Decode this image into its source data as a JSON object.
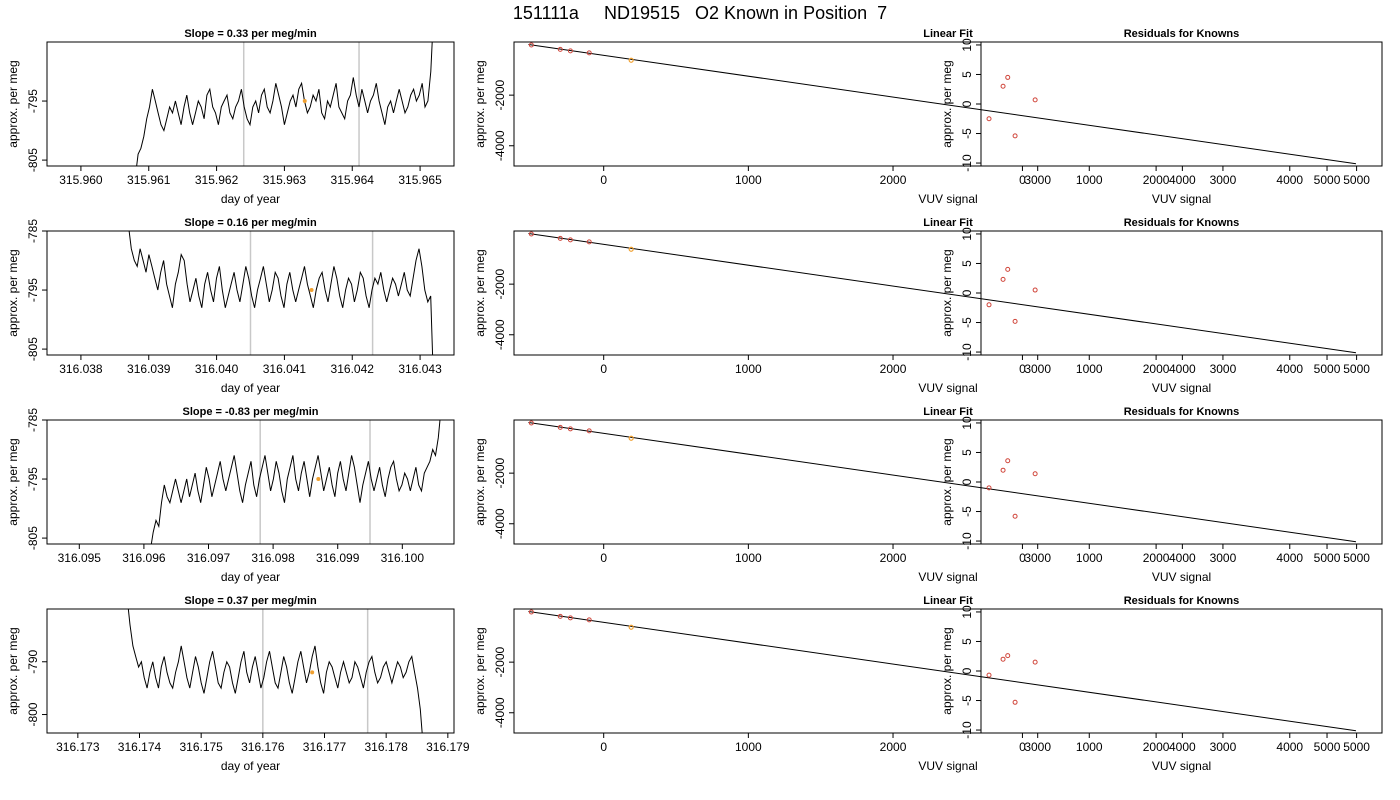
{
  "figure_title": "151111a     ND19515   O2 Known in Position  7",
  "colors": {
    "line": "#000000",
    "vline": "#c8c8c8",
    "point": "#d0453a",
    "highlight": "#f0a030",
    "axis": "#000000"
  },
  "chart_data": [
    {
      "type": "line",
      "row": 1,
      "col": 1,
      "title": "Slope =  0.33  per meg/min",
      "xlabel": "day of year",
      "ylabel": "approx. per meg",
      "xticks": [
        "315.960",
        "315.961",
        "315.962",
        "315.963",
        "315.964",
        "315.965"
      ],
      "xlim": [
        315.9595,
        315.9655
      ],
      "yticks": [
        "-805",
        "-795"
      ],
      "ylim": [
        -806,
        -785
      ],
      "x_start": 315.9608,
      "x_end": 315.9652,
      "trace_y": [
        -808,
        -804,
        -803,
        -801,
        -798,
        -796,
        -793,
        -795,
        -797,
        -799,
        -800,
        -798,
        -796,
        -797,
        -795,
        -797,
        -799,
        -796,
        -794,
        -797,
        -799,
        -797,
        -795,
        -796,
        -798,
        -794,
        -793,
        -796,
        -797,
        -799,
        -796,
        -795,
        -794,
        -797,
        -798,
        -796,
        -795,
        -793,
        -796,
        -798,
        -799,
        -796,
        -795,
        -797,
        -794,
        -793,
        -796,
        -797,
        -795,
        -792,
        -794,
        -796,
        -799,
        -797,
        -795,
        -794,
        -796,
        -793,
        -792,
        -795,
        -797,
        -796,
        -794,
        -795,
        -793,
        -797,
        -798,
        -795,
        -796,
        -794,
        -792,
        -796,
        -797,
        -798,
        -795,
        -794,
        -791,
        -794,
        -796,
        -793,
        -795,
        -797,
        -795,
        -794,
        -792,
        -795,
        -797,
        -799,
        -796,
        -795,
        -797,
        -795,
        -793,
        -795,
        -797,
        -796,
        -794,
        -793,
        -795,
        -794,
        -792,
        -796,
        -795,
        -790,
        -780
      ],
      "vlines": [
        315.9624,
        315.9641
      ],
      "highlight_point": {
        "x": 315.9633,
        "y": -795
      }
    },
    {
      "type": "scatter",
      "row": 1,
      "col": 2,
      "title": "Linear Fit",
      "xlabel": "VUV signal",
      "ylabel": "approx. per meg",
      "xticks": [
        "0",
        "1000",
        "2000",
        "3000",
        "4000",
        "5000"
      ],
      "xlim": [
        -620,
        5380
      ],
      "yticks": [
        "-4000",
        "-2000"
      ],
      "ylim": [
        -4800,
        100
      ],
      "points": [
        {
          "x": -500,
          "y": -17
        },
        {
          "x": -300,
          "y": -190
        },
        {
          "x": -230,
          "y": -250
        },
        {
          "x": -100,
          "y": -330
        }
      ],
      "highlight_point": {
        "x": 190,
        "y": -620
      },
      "fit_line": {
        "x": [
          -520,
          5200
        ],
        "y": [
          0,
          -4710
        ]
      }
    },
    {
      "type": "scatter",
      "row": 1,
      "col": 3,
      "title": "Residuals for Knowns",
      "xlabel": "VUV signal",
      "ylabel": "approx. per meg",
      "xticks": [
        "0",
        "1000",
        "2000",
        "3000",
        "4000",
        "5000"
      ],
      "xlim": [
        -620,
        5380
      ],
      "yticks": [
        "-10",
        "-5",
        "0",
        "5",
        "10"
      ],
      "ylim": [
        -10.5,
        10.5
      ],
      "points": [
        {
          "x": -500,
          "y": -2.5
        },
        {
          "x": -290,
          "y": 3.0
        },
        {
          "x": -220,
          "y": 4.5
        },
        {
          "x": -110,
          "y": -5.4
        },
        {
          "x": 190,
          "y": 0.7
        }
      ]
    },
    {
      "type": "line",
      "row": 2,
      "col": 1,
      "title": "Slope =  0.16  per meg/min",
      "xlabel": "day of year",
      "ylabel": "approx. per meg",
      "xticks": [
        "316.038",
        "316.039",
        "316.040",
        "316.041",
        "316.042",
        "316.043"
      ],
      "xlim": [
        316.0375,
        316.0435
      ],
      "yticks": [
        "-805",
        "-795",
        "-785"
      ],
      "ylim": [
        -806,
        -785
      ],
      "x_start": 316.0387,
      "x_end": 316.0432,
      "trace_y": [
        -784,
        -788,
        -790,
        -791,
        -788,
        -790,
        -792,
        -789,
        -791,
        -793,
        -795,
        -792,
        -790,
        -794,
        -796,
        -798,
        -794,
        -792,
        -789,
        -790,
        -794,
        -797,
        -795,
        -793,
        -796,
        -798,
        -794,
        -792,
        -795,
        -797,
        -793,
        -791,
        -795,
        -798,
        -796,
        -794,
        -792,
        -795,
        -797,
        -794,
        -791,
        -793,
        -796,
        -798,
        -795,
        -793,
        -791,
        -794,
        -797,
        -795,
        -792,
        -793,
        -796,
        -798,
        -794,
        -792,
        -795,
        -797,
        -795,
        -793,
        -791,
        -794,
        -796,
        -798,
        -795,
        -793,
        -792,
        -795,
        -797,
        -794,
        -791,
        -793,
        -796,
        -798,
        -795,
        -793,
        -794,
        -797,
        -795,
        -792,
        -793,
        -796,
        -798,
        -795,
        -793,
        -794,
        -792,
        -795,
        -797,
        -795,
        -793,
        -794,
        -796,
        -794,
        -792,
        -795,
        -796,
        -793,
        -790,
        -788,
        -791,
        -795,
        -797,
        -796,
        -812
      ],
      "vlines": [
        316.0405,
        316.0423
      ],
      "highlight_point": {
        "x": 316.0414,
        "y": -795
      }
    },
    {
      "type": "scatter",
      "row": 2,
      "col": 2,
      "title": "Linear Fit",
      "xlabel": "VUV signal",
      "ylabel": "approx. per meg",
      "xticks": [
        "0",
        "1000",
        "2000",
        "3000",
        "4000",
        "5000"
      ],
      "xlim": [
        -620,
        5380
      ],
      "yticks": [
        "-4000",
        "-2000"
      ],
      "ylim": [
        -4800,
        100
      ],
      "points": [
        {
          "x": -500,
          "y": -17
        },
        {
          "x": -300,
          "y": -190
        },
        {
          "x": -230,
          "y": -250
        },
        {
          "x": -100,
          "y": -330
        }
      ],
      "highlight_point": {
        "x": 190,
        "y": -620
      },
      "fit_line": {
        "x": [
          -520,
          5200
        ],
        "y": [
          0,
          -4710
        ]
      }
    },
    {
      "type": "scatter",
      "row": 2,
      "col": 3,
      "title": "Residuals for Knowns",
      "xlabel": "VUV signal",
      "ylabel": "approx. per meg",
      "xticks": [
        "0",
        "1000",
        "2000",
        "3000",
        "4000",
        "5000"
      ],
      "xlim": [
        -620,
        5380
      ],
      "yticks": [
        "-10",
        "-5",
        "0",
        "5",
        "10"
      ],
      "ylim": [
        -10.5,
        10.5
      ],
      "points": [
        {
          "x": -500,
          "y": -2.0
        },
        {
          "x": -290,
          "y": 2.3
        },
        {
          "x": -220,
          "y": 4.0
        },
        {
          "x": -110,
          "y": -4.8
        },
        {
          "x": 190,
          "y": 0.5
        }
      ]
    },
    {
      "type": "line",
      "row": 3,
      "col": 1,
      "title": "Slope =  -0.83  per meg/min",
      "xlabel": "day of year",
      "ylabel": "approx. per meg",
      "xticks": [
        "316.095",
        "316.096",
        "316.097",
        "316.098",
        "316.099",
        "316.100"
      ],
      "xlim": [
        316.0945,
        316.1008
      ],
      "yticks": [
        "-805",
        "-795",
        "-785"
      ],
      "ylim": [
        -806,
        -785
      ],
      "x_start": 316.0961,
      "x_end": 316.1006,
      "trace_y": [
        -807,
        -804,
        -802,
        -803,
        -799,
        -796,
        -798,
        -799,
        -797,
        -795,
        -797,
        -799,
        -797,
        -795,
        -798,
        -796,
        -794,
        -797,
        -799,
        -796,
        -793,
        -795,
        -798,
        -796,
        -794,
        -792,
        -795,
        -797,
        -795,
        -793,
        -791,
        -794,
        -797,
        -799,
        -796,
        -794,
        -792,
        -796,
        -798,
        -795,
        -793,
        -791,
        -794,
        -797,
        -795,
        -792,
        -794,
        -797,
        -799,
        -795,
        -793,
        -791,
        -795,
        -797,
        -794,
        -792,
        -795,
        -798,
        -795,
        -793,
        -791,
        -794,
        -797,
        -795,
        -793,
        -796,
        -798,
        -794,
        -792,
        -795,
        -797,
        -794,
        -791,
        -793,
        -796,
        -799,
        -796,
        -794,
        -792,
        -795,
        -797,
        -795,
        -793,
        -796,
        -798,
        -795,
        -793,
        -792,
        -795,
        -797,
        -796,
        -794,
        -795,
        -797,
        -795,
        -793,
        -796,
        -797,
        -794,
        -793,
        -792,
        -790,
        -791,
        -788,
        -783
      ],
      "vlines": [
        316.0978,
        316.0995
      ],
      "highlight_point": {
        "x": 316.0987,
        "y": -795
      }
    },
    {
      "type": "scatter",
      "row": 3,
      "col": 2,
      "title": "Linear Fit",
      "xlabel": "VUV signal",
      "ylabel": "approx. per meg",
      "xticks": [
        "0",
        "1000",
        "2000",
        "3000",
        "4000",
        "5000"
      ],
      "xlim": [
        -620,
        5380
      ],
      "yticks": [
        "-4000",
        "-2000"
      ],
      "ylim": [
        -4800,
        100
      ],
      "points": [
        {
          "x": -500,
          "y": -17
        },
        {
          "x": -300,
          "y": -190
        },
        {
          "x": -230,
          "y": -250
        },
        {
          "x": -100,
          "y": -330
        }
      ],
      "highlight_point": {
        "x": 190,
        "y": -620
      },
      "fit_line": {
        "x": [
          -520,
          5200
        ],
        "y": [
          0,
          -4710
        ]
      }
    },
    {
      "type": "scatter",
      "row": 3,
      "col": 3,
      "title": "Residuals for Knowns",
      "xlabel": "VUV signal",
      "ylabel": "approx. per meg",
      "xticks": [
        "0",
        "1000",
        "2000",
        "3000",
        "4000",
        "5000"
      ],
      "xlim": [
        -620,
        5380
      ],
      "yticks": [
        "-10",
        "-5",
        "0",
        "5",
        "10"
      ],
      "ylim": [
        -10.5,
        10.5
      ],
      "points": [
        {
          "x": -500,
          "y": -1.0
        },
        {
          "x": -290,
          "y": 2.0
        },
        {
          "x": -220,
          "y": 3.6
        },
        {
          "x": -110,
          "y": -5.8
        },
        {
          "x": 190,
          "y": 1.4
        }
      ]
    },
    {
      "type": "line",
      "row": 4,
      "col": 1,
      "title": "Slope =  0.37  per meg/min",
      "xlabel": "day of year",
      "ylabel": "approx. per meg",
      "xticks": [
        "316.173",
        "316.174",
        "316.175",
        "316.176",
        "316.177",
        "316.178",
        "316.179"
      ],
      "xlim": [
        316.1725,
        316.1791
      ],
      "yticks": [
        "-800",
        "-790"
      ],
      "ylim": [
        -803.5,
        -780
      ],
      "x_start": 316.1738,
      "x_end": 316.1786,
      "trace_y": [
        -778,
        -783,
        -787,
        -789,
        -791,
        -790,
        -793,
        -795,
        -792,
        -790,
        -793,
        -795,
        -791,
        -789,
        -792,
        -794,
        -795,
        -792,
        -790,
        -787,
        -790,
        -793,
        -795,
        -792,
        -789,
        -791,
        -794,
        -796,
        -793,
        -790,
        -788,
        -791,
        -794,
        -795,
        -792,
        -790,
        -791,
        -794,
        -796,
        -793,
        -790,
        -788,
        -792,
        -794,
        -791,
        -789,
        -792,
        -795,
        -793,
        -790,
        -788,
        -791,
        -794,
        -795,
        -792,
        -789,
        -791,
        -794,
        -796,
        -793,
        -790,
        -788,
        -791,
        -794,
        -792,
        -789,
        -787,
        -791,
        -794,
        -796,
        -792,
        -790,
        -791,
        -793,
        -795,
        -792,
        -790,
        -792,
        -794,
        -793,
        -790,
        -791,
        -793,
        -795,
        -792,
        -790,
        -789,
        -792,
        -794,
        -793,
        -791,
        -790,
        -792,
        -794,
        -792,
        -790,
        -791,
        -793,
        -792,
        -790,
        -789,
        -792,
        -795,
        -799,
        -806
      ],
      "vlines": [
        316.176,
        316.1777
      ],
      "highlight_point": {
        "x": 316.1768,
        "y": -792
      }
    },
    {
      "type": "scatter",
      "row": 4,
      "col": 2,
      "title": "Linear Fit",
      "xlabel": "VUV signal",
      "ylabel": "approx. per meg",
      "xticks": [
        "0",
        "1000",
        "2000",
        "3000",
        "4000",
        "5000"
      ],
      "xlim": [
        -620,
        5380
      ],
      "yticks": [
        "-4000",
        "-2000"
      ],
      "ylim": [
        -4800,
        100
      ],
      "points": [
        {
          "x": -500,
          "y": -17
        },
        {
          "x": -300,
          "y": -190
        },
        {
          "x": -230,
          "y": -250
        },
        {
          "x": -100,
          "y": -330
        }
      ],
      "highlight_point": {
        "x": 190,
        "y": -620
      },
      "fit_line": {
        "x": [
          -520,
          5200
        ],
        "y": [
          0,
          -4710
        ]
      }
    },
    {
      "type": "scatter",
      "row": 4,
      "col": 3,
      "title": "Residuals for Knowns",
      "xlabel": "VUV signal",
      "ylabel": "approx. per meg",
      "xticks": [
        "0",
        "1000",
        "2000",
        "3000",
        "4000",
        "5000"
      ],
      "xlim": [
        -620,
        5380
      ],
      "yticks": [
        "-10",
        "-5",
        "0",
        "5",
        "10"
      ],
      "ylim": [
        -10.5,
        10.5
      ],
      "points": [
        {
          "x": -500,
          "y": -0.7
        },
        {
          "x": -290,
          "y": 2.0
        },
        {
          "x": -220,
          "y": 2.6
        },
        {
          "x": -110,
          "y": -5.3
        },
        {
          "x": 190,
          "y": 1.5
        }
      ]
    }
  ]
}
